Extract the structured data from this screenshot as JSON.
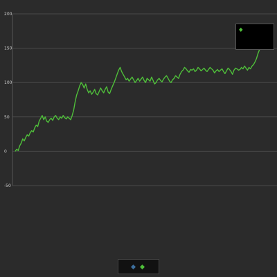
{
  "chart_data": {
    "type": "line",
    "title": "",
    "xlabel": "",
    "ylabel": "",
    "ylim": [
      -50,
      200
    ],
    "y_ticks": [
      "200",
      "150",
      "100",
      "50",
      "0",
      "-50"
    ],
    "grid": true,
    "legend_position": "bottom-center",
    "series": [
      {
        "name": "",
        "color": "#4fbf3a",
        "values": [
          0,
          3,
          1,
          8,
          12,
          18,
          15,
          20,
          24,
          22,
          27,
          30,
          28,
          34,
          38,
          36,
          44,
          48,
          52,
          46,
          50,
          44,
          42,
          46,
          48,
          45,
          50,
          52,
          48,
          46,
          50,
          48,
          52,
          49,
          47,
          50,
          48,
          46,
          52,
          60,
          72,
          82,
          88,
          95,
          100,
          97,
          92,
          98,
          90,
          85,
          88,
          83,
          86,
          90,
          84,
          82,
          87,
          92,
          88,
          85,
          90,
          94,
          86,
          84,
          90,
          95,
          100,
          106,
          112,
          118,
          122,
          116,
          112,
          108,
          104,
          106,
          102,
          105,
          108,
          104,
          100,
          103,
          106,
          102,
          105,
          108,
          103,
          100,
          106,
          104,
          102,
          108,
          103,
          98,
          100,
          104,
          106,
          103,
          101,
          105,
          108,
          110,
          106,
          102,
          100,
          104,
          106,
          110,
          108,
          106,
          112,
          116,
          118,
          122,
          120,
          117,
          115,
          119,
          118,
          120,
          116,
          118,
          122,
          120,
          117,
          119,
          121,
          118,
          116,
          119,
          122,
          120,
          118,
          114,
          117,
          119,
          116,
          118,
          120,
          116,
          113,
          117,
          121,
          119,
          116,
          112,
          118,
          121,
          120,
          118,
          119,
          122,
          120,
          124,
          121,
          118,
          122,
          120,
          124,
          126,
          130,
          135,
          142,
          148,
          150,
          153,
          157,
          160,
          164,
          167,
          170,
          168
        ]
      },
      {
        "name": "",
        "color": "#3d6f9e",
        "values": []
      }
    ],
    "tooltip": {
      "title": "",
      "value": ""
    }
  }
}
